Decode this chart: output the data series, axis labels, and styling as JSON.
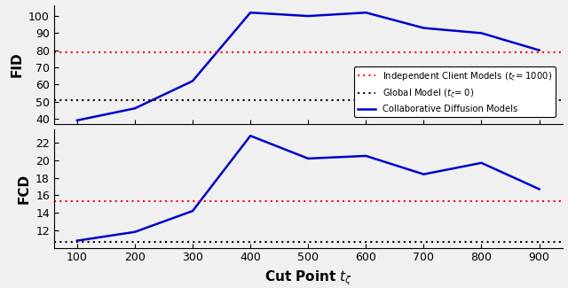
{
  "x": [
    100,
    200,
    300,
    400,
    500,
    600,
    700,
    800,
    900
  ],
  "fid_blue": [
    39,
    46,
    62,
    102,
    100,
    102,
    93,
    90,
    80
  ],
  "fid_red": 79,
  "fid_black": 51,
  "fcd_blue": [
    10.8,
    11.8,
    14.2,
    22.8,
    20.2,
    20.5,
    18.4,
    19.7,
    16.7
  ],
  "fcd_red": 15.3,
  "fcd_black": 10.7,
  "xlabel": "Cut Point $t_{\\zeta}$",
  "ylabel_top": "FID",
  "ylabel_bottom": "FCD",
  "legend_labels": [
    "Independent Client Models ($t_{\\zeta}$= 1000)",
    "Global Model ($t_{\\zeta}$= 0)",
    "Collaborative Diffusion Models"
  ],
  "fid_ylim": [
    37,
    106
  ],
  "fcd_ylim": [
    10.0,
    23.5
  ],
  "fid_yticks": [
    40,
    50,
    60,
    70,
    80,
    90,
    100
  ],
  "fcd_yticks": [
    12,
    14,
    16,
    18,
    20,
    22
  ],
  "xticks": [
    100,
    200,
    300,
    400,
    500,
    600,
    700,
    800,
    900
  ],
  "red_color": "#ff0000",
  "black_color": "#000000",
  "blue_color": "#0000cd",
  "line_width": 1.8,
  "dashed_linewidth": 1.5,
  "bg_color": "#f0f0f0"
}
